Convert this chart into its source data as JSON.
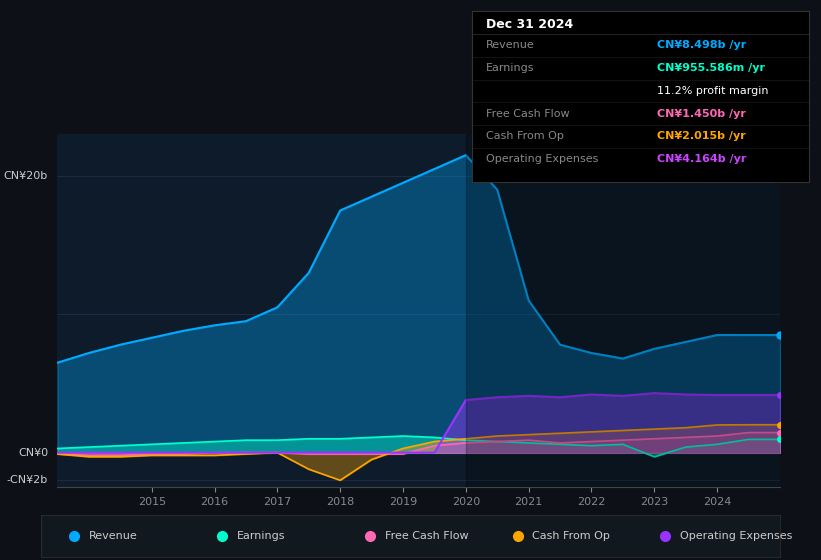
{
  "bg_color": "#0d1117",
  "plot_bg_color": "#0d1b2a",
  "title_box": {
    "date": "Dec 31 2024",
    "rows": [
      {
        "label": "Revenue",
        "value": "CN¥8.498b /yr",
        "value_color": "#00aaff"
      },
      {
        "label": "Earnings",
        "value": "CN¥955.586m /yr",
        "value_color": "#00ffcc"
      },
      {
        "label": "",
        "value": "11.2% profit margin",
        "value_color": "#ffffff"
      },
      {
        "label": "Free Cash Flow",
        "value": "CN¥1.450b /yr",
        "value_color": "#ff69b4"
      },
      {
        "label": "Cash From Op",
        "value": "CN¥2.015b /yr",
        "value_color": "#ffa500"
      },
      {
        "label": "Operating Expenses",
        "value": "CN¥4.164b /yr",
        "value_color": "#cc44ff"
      }
    ]
  },
  "y_label_top": "CN¥20b",
  "y_label_zero": "CN¥0",
  "y_label_neg": "-CN¥2b",
  "ylim": [
    -2.5,
    23
  ],
  "years_x": [
    2013.5,
    2014,
    2014.5,
    2015,
    2015.5,
    2016,
    2016.5,
    2017,
    2017.5,
    2018,
    2018.5,
    2019,
    2019.5,
    2020,
    2020.5,
    2021,
    2021.5,
    2022,
    2022.5,
    2023,
    2023.5,
    2024,
    2024.5,
    2025
  ],
  "revenue": [
    6.5,
    7.2,
    7.8,
    8.3,
    8.8,
    9.2,
    9.5,
    10.5,
    13.0,
    17.5,
    18.5,
    19.5,
    20.5,
    21.5,
    19.0,
    11.0,
    7.8,
    7.2,
    6.8,
    7.5,
    8.0,
    8.5,
    8.498,
    8.498
  ],
  "earnings": [
    0.3,
    0.4,
    0.5,
    0.6,
    0.7,
    0.8,
    0.9,
    0.9,
    1.0,
    1.0,
    1.1,
    1.2,
    1.1,
    0.9,
    0.8,
    0.7,
    0.6,
    0.5,
    0.6,
    -0.3,
    0.4,
    0.6,
    0.956,
    0.956
  ],
  "free_cash_flow": [
    -0.1,
    -0.2,
    -0.2,
    -0.1,
    -0.1,
    0.0,
    0.0,
    0.0,
    -0.1,
    -0.1,
    -0.1,
    -0.1,
    0.5,
    0.7,
    0.8,
    0.9,
    0.7,
    0.8,
    0.9,
    1.0,
    1.1,
    1.2,
    1.45,
    1.45
  ],
  "cash_from_op": [
    -0.1,
    -0.3,
    -0.3,
    -0.2,
    -0.2,
    -0.2,
    -0.1,
    0.0,
    -1.2,
    -2.0,
    -0.5,
    0.3,
    0.8,
    1.0,
    1.2,
    1.3,
    1.4,
    1.5,
    1.6,
    1.7,
    1.8,
    2.0,
    2.015,
    2.015
  ],
  "operating_expenses": [
    0.0,
    0.0,
    0.0,
    0.0,
    0.0,
    0.0,
    0.0,
    0.0,
    0.0,
    0.0,
    0.0,
    0.0,
    0.0,
    3.8,
    4.0,
    4.1,
    4.0,
    4.2,
    4.1,
    4.3,
    4.2,
    4.164,
    4.164,
    4.164
  ],
  "colors": {
    "revenue": "#00aaff",
    "earnings": "#00ffcc",
    "free_cash_flow": "#ff69b4",
    "cash_from_op": "#ffa500",
    "operating_expenses": "#9933ff"
  },
  "legend_items": [
    {
      "label": "Revenue",
      "color": "#00aaff"
    },
    {
      "label": "Earnings",
      "color": "#00ffcc"
    },
    {
      "label": "Free Cash Flow",
      "color": "#ff69b4"
    },
    {
      "label": "Cash From Op",
      "color": "#ffa500"
    },
    {
      "label": "Operating Expenses",
      "color": "#9933ff"
    }
  ],
  "xticks": [
    2015,
    2016,
    2017,
    2018,
    2019,
    2020,
    2021,
    2022,
    2023,
    2024
  ],
  "shade_start_x": 2020.0
}
